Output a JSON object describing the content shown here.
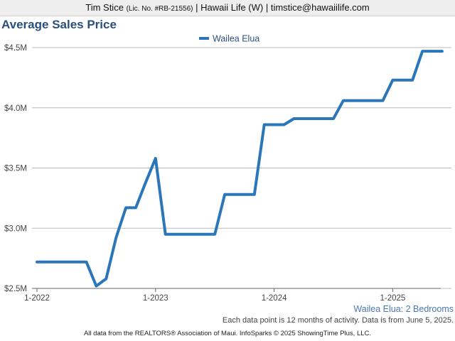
{
  "header": {
    "name": "Tim Stice",
    "license": "(Lic. No. #RB-21556)",
    "rest": "| Hawaii Life (W) | timstice@hawaiilife.com"
  },
  "subtitle": "Wailea Elua: 2 Bedrooms",
  "note": "Each data point is 12 months of activity. Data is from June 5, 2025.",
  "footer": "All data from the REALTORS® Association of Maui. InfoSparks © 2025 ShowingTime Plus, LLC.",
  "colors": {
    "series": "#2a76b8",
    "grid": "#bbbbbb",
    "title": "#2a4f7d"
  },
  "chart_data": {
    "type": "line",
    "title": "Average Sales Price",
    "legend_position": "top",
    "grid": true,
    "ylim": [
      2500000,
      4600000
    ],
    "y_ticks": [
      {
        "value": 2500000,
        "label": "$2.5M"
      },
      {
        "value": 3000000,
        "label": "$3.0M"
      },
      {
        "value": 3500000,
        "label": "$3.5M"
      },
      {
        "value": 4000000,
        "label": "$4.0M"
      },
      {
        "value": 4500000,
        "label": "$4.5M"
      }
    ],
    "x_ticks": [
      {
        "value": "2022-01",
        "label": "1-2022"
      },
      {
        "value": "2023-01",
        "label": "1-2023"
      },
      {
        "value": "2024-01",
        "label": "1-2024"
      },
      {
        "value": "2025-01",
        "label": "1-2025"
      }
    ],
    "x_range": [
      "2022-01",
      "2025-06"
    ],
    "series": [
      {
        "name": "Wailea Elua",
        "x": [
          "2022-01",
          "2022-02",
          "2022-03",
          "2022-04",
          "2022-05",
          "2022-06",
          "2022-07",
          "2022-08",
          "2022-09",
          "2022-10",
          "2022-11",
          "2022-12",
          "2023-01",
          "2023-02",
          "2023-03",
          "2023-04",
          "2023-05",
          "2023-06",
          "2023-07",
          "2023-08",
          "2023-09",
          "2023-10",
          "2023-11",
          "2023-12",
          "2024-01",
          "2024-02",
          "2024-03",
          "2024-04",
          "2024-05",
          "2024-06",
          "2024-07",
          "2024-08",
          "2024-09",
          "2024-10",
          "2024-11",
          "2024-12",
          "2025-01",
          "2025-02",
          "2025-03",
          "2025-04",
          "2025-05",
          "2025-06"
        ],
        "values": [
          2720000,
          2720000,
          2720000,
          2720000,
          2720000,
          2720000,
          2520000,
          2580000,
          2920000,
          3170000,
          3170000,
          3380000,
          3580000,
          2950000,
          2950000,
          2950000,
          2950000,
          2950000,
          2950000,
          3280000,
          3280000,
          3280000,
          3280000,
          3860000,
          3860000,
          3860000,
          3910000,
          3910000,
          3910000,
          3910000,
          3910000,
          4060000,
          4060000,
          4060000,
          4060000,
          4060000,
          4230000,
          4230000,
          4230000,
          4470000,
          4470000,
          4470000
        ]
      }
    ]
  }
}
